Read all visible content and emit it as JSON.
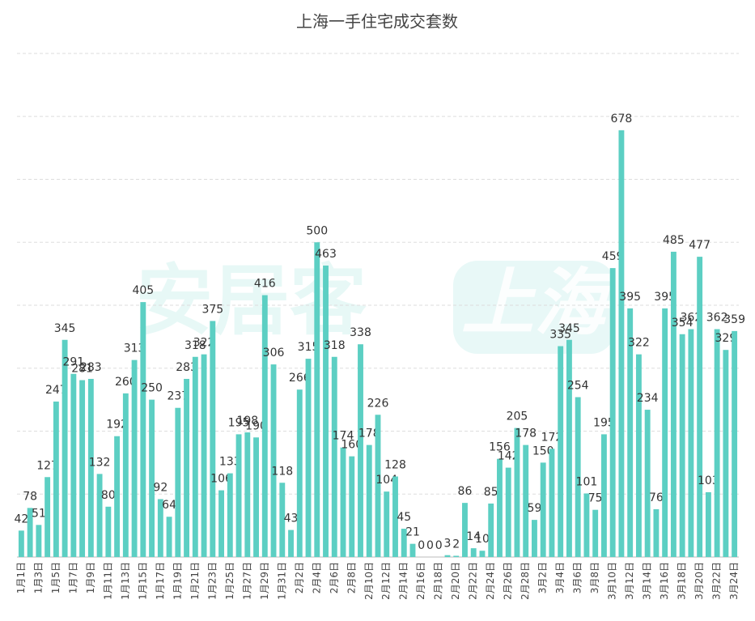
{
  "chart_data": {
    "type": "bar",
    "title": "上海一手住宅成交套数",
    "watermark": [
      "安居客",
      "上海"
    ],
    "categories": [
      "1月1日",
      null,
      "1月3日",
      null,
      "1月5日",
      null,
      "1月7日",
      null,
      "1月9日",
      null,
      "1月11日",
      null,
      "1月13日",
      null,
      "1月15日",
      null,
      "1月17日",
      null,
      "1月19日",
      null,
      "1月21日",
      null,
      "1月23日",
      null,
      "1月25日",
      null,
      "1月27日",
      null,
      "1月29日",
      null,
      "1月31日",
      null,
      "2月2日",
      null,
      "2月4日",
      null,
      "2月6日",
      null,
      "2月8日",
      null,
      "2月10日",
      null,
      "2月12日",
      null,
      "2月14日",
      null,
      "2月16日",
      null,
      "2月18日",
      null,
      "2月20日",
      null,
      "2月22日",
      null,
      "2月24日",
      null,
      "2月26日",
      null,
      "2月28日",
      null,
      "3月2日",
      null,
      "3月4日",
      null,
      "3月6日",
      null,
      "3月8日",
      null,
      "3月10日",
      null,
      "3月12日",
      null,
      "3月14日",
      null,
      "3月16日",
      null,
      "3月18日",
      null,
      "3月20日",
      null,
      "3月22日",
      null,
      "3月24日"
    ],
    "values": [
      42,
      78,
      51,
      127,
      247,
      345,
      291,
      281,
      283,
      132,
      80,
      192,
      260,
      313,
      405,
      250,
      92,
      64,
      237,
      283,
      318,
      322,
      375,
      106,
      133,
      195,
      198,
      190,
      416,
      306,
      118,
      43,
      266,
      315,
      500,
      463,
      318,
      174,
      160,
      338,
      178,
      226,
      104,
      128,
      45,
      21,
      0,
      0,
      0,
      3,
      2,
      86,
      14,
      10,
      85,
      156,
      142,
      205,
      178,
      59,
      150,
      172,
      335,
      345,
      254,
      101,
      75,
      195,
      459,
      678,
      395,
      322,
      234,
      76,
      395,
      485,
      354,
      362,
      477,
      103,
      362,
      329,
      359
    ],
    "color": "#5ccfc3",
    "ylim": [
      0,
      800
    ],
    "yticks": [
      0,
      100,
      200,
      300,
      400,
      500,
      600,
      700,
      800
    ],
    "grid": true
  }
}
